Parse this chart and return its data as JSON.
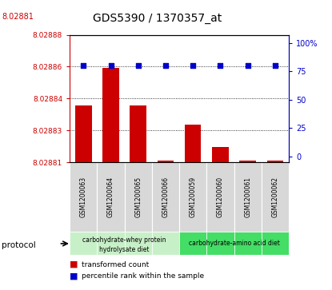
{
  "title": "GDS5390 / 1370357_at",
  "samples": [
    "GSM1200063",
    "GSM1200064",
    "GSM1200065",
    "GSM1200066",
    "GSM1200059",
    "GSM1200060",
    "GSM1200061",
    "GSM1200062"
  ],
  "baseline": 8.02881,
  "bar_tops": [
    8.02884,
    8.02886,
    8.02884,
    8.028811,
    8.02883,
    8.028818,
    8.028811,
    8.028811
  ],
  "percentile": [
    80,
    80,
    80,
    80,
    80,
    80,
    80,
    80
  ],
  "bar_color": "#cc0000",
  "dot_color": "#0000cc",
  "right_yticks": [
    0,
    25,
    50,
    75,
    100
  ],
  "right_ytick_labels": [
    "0",
    "25",
    "50",
    "75",
    "100%"
  ],
  "group1_indices": [
    0,
    1,
    2,
    3
  ],
  "group2_indices": [
    4,
    5,
    6,
    7
  ],
  "group1_label_line1": "carbohydrate-whey protein",
  "group1_label_line2": "hydrolysate diet",
  "group2_label": "carbohydrate-amino acid diet",
  "group1_color": "#c8f0c8",
  "group2_color": "#44dd66",
  "sample_box_color": "#d8d8d8",
  "left_label_color": "#cc0000",
  "right_label_color": "#0000cc",
  "top_red_label": "8.02881",
  "legend_red_label": "transformed count",
  "legend_blue_label": "percentile rank within the sample"
}
